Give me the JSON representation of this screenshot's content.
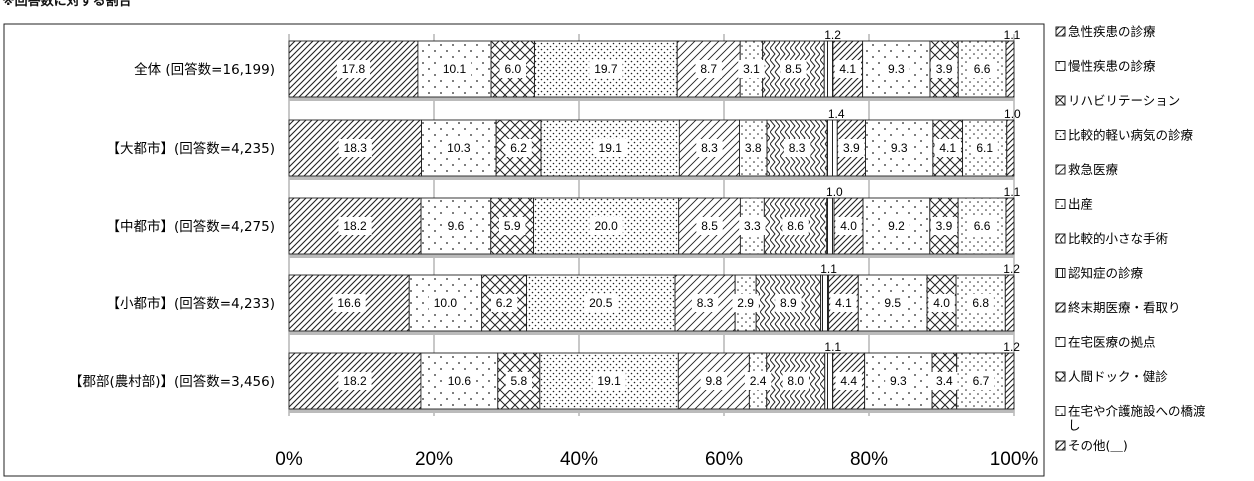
{
  "title": "※回答数に対する割合",
  "chart_data": {
    "type": "bar",
    "orientation": "horizontal",
    "stacked": "percent",
    "categories": [
      "全体 (回答数=16,199)",
      "【大都市】(回答数=4,235)",
      "【中都市】(回答数=4,275)",
      "【小都市】(回答数=4,233)",
      "【郡部(農村部)】(回答数=3,456)"
    ],
    "series": [
      {
        "name": "急性疾患の診療",
        "values": [
          17.8,
          18.3,
          18.2,
          16.6,
          18.2
        ]
      },
      {
        "name": "慢性疾患の診療",
        "values": [
          10.1,
          10.3,
          9.6,
          10.0,
          10.6
        ]
      },
      {
        "name": "リハビリテーション",
        "values": [
          6.0,
          6.2,
          5.9,
          6.2,
          5.8
        ]
      },
      {
        "name": "比較的軽い病気の診療",
        "values": [
          19.7,
          19.1,
          20.0,
          20.5,
          19.1
        ]
      },
      {
        "name": "救急医療",
        "values": [
          8.7,
          8.3,
          8.5,
          8.3,
          9.8
        ]
      },
      {
        "name": "出産",
        "values": [
          3.1,
          3.8,
          3.3,
          2.9,
          2.4
        ]
      },
      {
        "name": "比較的小さな手術",
        "values": [
          8.5,
          8.3,
          8.6,
          8.9,
          8.0
        ]
      },
      {
        "name": "認知症の診療",
        "values": [
          1.2,
          1.4,
          1.0,
          1.1,
          1.1
        ]
      },
      {
        "name": "終末期医療・看取り",
        "values": [
          4.1,
          3.9,
          4.0,
          4.1,
          4.4
        ]
      },
      {
        "name": "在宅医療の拠点",
        "values": [
          9.3,
          9.3,
          9.2,
          9.5,
          9.3
        ]
      },
      {
        "name": "人間ドック・健診",
        "values": [
          3.9,
          4.1,
          3.9,
          4.0,
          3.4
        ]
      },
      {
        "name": "在宅や介護施設への橋渡し",
        "values": [
          6.6,
          6.1,
          6.6,
          6.8,
          6.7
        ]
      },
      {
        "name": "その他(＿)",
        "values": [
          1.1,
          1.0,
          1.1,
          1.2,
          1.2
        ]
      }
    ],
    "xaxis": {
      "ticks": [
        "0%",
        "20%",
        "40%",
        "60%",
        "80%",
        "100%"
      ],
      "range": [
        0,
        100
      ]
    },
    "grid": true,
    "legend": "right"
  }
}
